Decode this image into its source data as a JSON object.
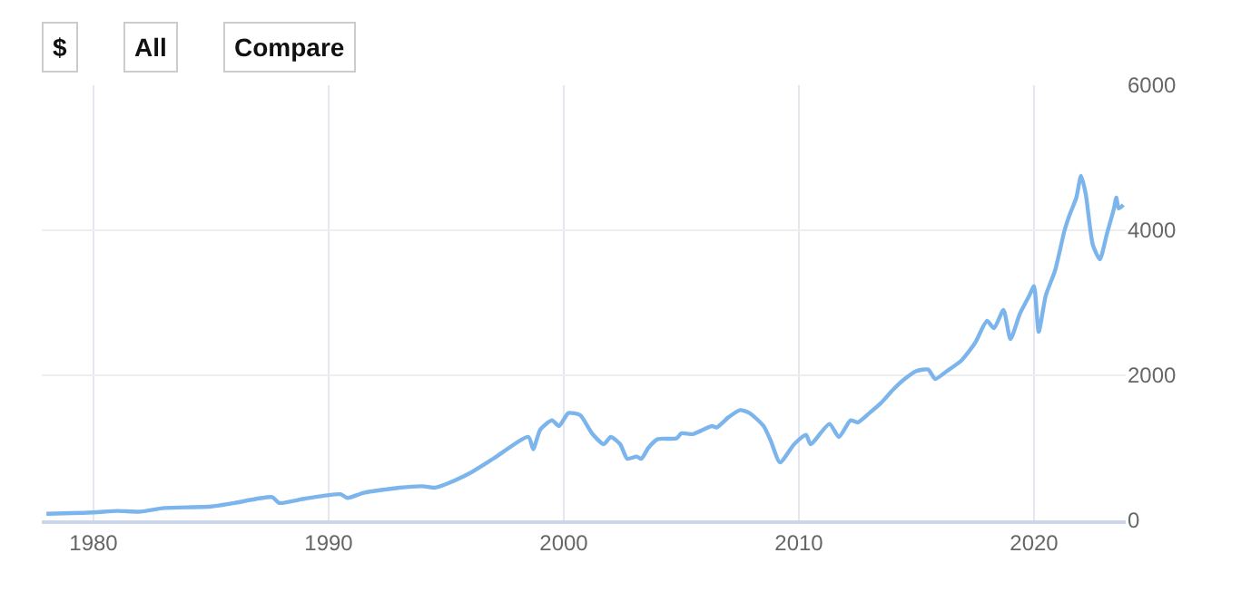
{
  "chart_data": {
    "type": "line",
    "annotations": [
      "$",
      "All",
      "Compare"
    ],
    "x": [
      1978,
      1980,
      1981,
      1982,
      1983,
      1985,
      1986,
      1987.6,
      1987.9,
      1989,
      1990.5,
      1990.8,
      1991.5,
      1993,
      1994,
      1994.5,
      1995,
      1996,
      1997,
      1998.5,
      1998.7,
      1999,
      1999.5,
      1999.8,
      2000.2,
      2000.7,
      2001.2,
      2001.7,
      2002,
      2002.4,
      2002.7,
      2003.1,
      2003.3,
      2003.6,
      2004,
      2004.8,
      2005,
      2005.5,
      2006.3,
      2006.5,
      2007,
      2007.5,
      2007.9,
      2008.5,
      2008.8,
      2009.2,
      2009.8,
      2010.3,
      2010.5,
      2011.3,
      2011.7,
      2012.2,
      2012.5,
      2013,
      2013.5,
      2014,
      2014.5,
      2015,
      2015.5,
      2015.8,
      2016.3,
      2016.9,
      2017.5,
      2018,
      2018.3,
      2018.7,
      2019,
      2019.4,
      2019.8,
      2020,
      2020.2,
      2020.5,
      2020.9,
      2021.3,
      2021.5,
      2021.8,
      2022,
      2022.2,
      2022.5,
      2022.8,
      2023.1,
      2023.4,
      2023.5,
      2023.6,
      2023.8
    ],
    "series": [
      {
        "color": "#7cb5ec",
        "values": [
          90,
          110,
          130,
          120,
          170,
          190,
          240,
          320,
          240,
          300,
          360,
          310,
          380,
          450,
          470,
          450,
          500,
          650,
          850,
          1150,
          980,
          1250,
          1380,
          1300,
          1480,
          1450,
          1200,
          1050,
          1150,
          1050,
          850,
          880,
          850,
          1000,
          1120,
          1130,
          1200,
          1190,
          1300,
          1280,
          1420,
          1520,
          1480,
          1300,
          1100,
          800,
          1050,
          1180,
          1050,
          1330,
          1150,
          1380,
          1350,
          1480,
          1620,
          1800,
          1950,
          2060,
          2080,
          1950,
          2060,
          2200,
          2450,
          2750,
          2650,
          2900,
          2500,
          2850,
          3100,
          3230,
          2600,
          3100,
          3450,
          4000,
          4200,
          4450,
          4750,
          4500,
          3800,
          3600,
          3950,
          4300,
          4450,
          4300,
          4350
        ]
      }
    ],
    "xlim": [
      1977.8,
      2023.9
    ],
    "xticks": [
      1980,
      1990,
      2000,
      2010,
      2020
    ],
    "ylim": [
      0,
      6000
    ],
    "yticks": [
      0,
      2000,
      4000,
      6000
    ],
    "grid": true,
    "marker": "none",
    "line_style": "solid"
  }
}
